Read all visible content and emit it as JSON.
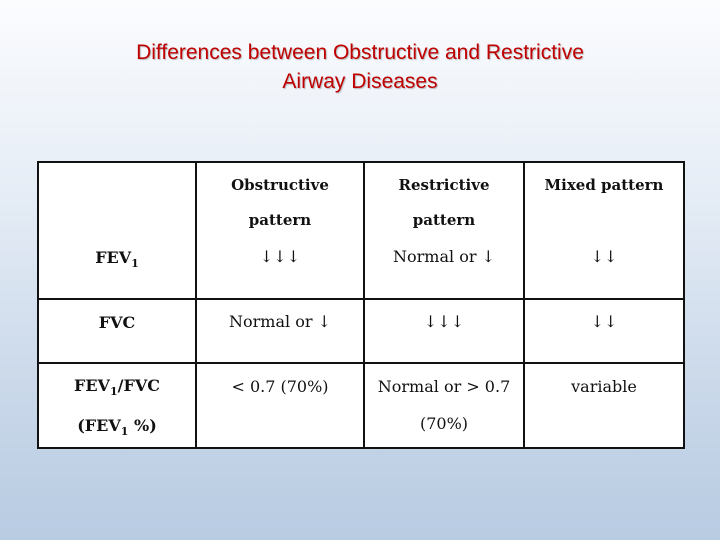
{
  "title": {
    "line1": "Differences between Obstructive and Restrictive",
    "line2": "Airway Diseases"
  },
  "table": {
    "headers": {
      "obstructive": [
        "Obstructive",
        "pattern"
      ],
      "restrictive": [
        "Restrictive",
        "pattern"
      ],
      "mixed": "Mixed pattern"
    },
    "rows": [
      {
        "label_main": "FEV",
        "label_sub": "1",
        "obstructive": "↓↓↓",
        "restrictive": "Normal or ↓",
        "mixed": "↓↓"
      },
      {
        "label_main": "FVC",
        "obstructive": "Normal or ↓",
        "restrictive": "↓↓↓",
        "mixed": "↓↓"
      },
      {
        "label_line1_a": "FEV",
        "label_line1_sub": "1",
        "label_line1_b": "/FVC",
        "label_line2_a": "(FEV",
        "label_line2_sub": "1",
        "label_line2_b": " %)",
        "obstructive": "< 0.7 (70%)",
        "restrictive": [
          "Normal or > 0.7",
          "(70%)"
        ],
        "mixed": "variable"
      }
    ]
  }
}
